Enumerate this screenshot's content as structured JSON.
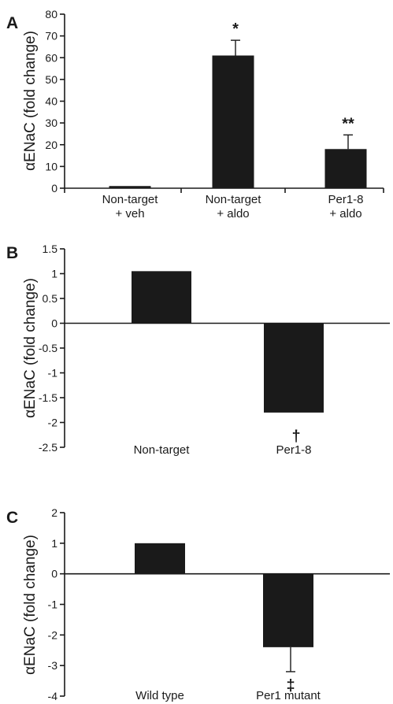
{
  "chart_data": [
    {
      "panel": "A",
      "type": "bar",
      "ylabel": "αENaC (fold change)",
      "ylim": [
        0,
        80
      ],
      "yticks": [
        0,
        10,
        20,
        30,
        40,
        50,
        60,
        70,
        80
      ],
      "categories": [
        [
          "Non-target",
          "+ veh"
        ],
        [
          "Non-target",
          "+ aldo"
        ],
        [
          "Per1-8",
          "+ aldo"
        ]
      ],
      "values": [
        1,
        61,
        18
      ],
      "errors": [
        0.3,
        7,
        6.5
      ],
      "annotations": [
        "",
        "*",
        "**"
      ]
    },
    {
      "panel": "B",
      "type": "bar",
      "ylabel": "αENaC (fold change)",
      "ylim": [
        -2.5,
        1.5
      ],
      "yticks": [
        -2.5,
        -2,
        -1.5,
        -1,
        -0.5,
        0,
        0.5,
        1,
        1.5
      ],
      "ytick_labels": [
        "-2.5",
        "-2",
        "-1.5",
        "-1",
        "-0.5",
        "0",
        "0.5",
        "1",
        "1.5"
      ],
      "categories": [
        [
          "Non-target"
        ],
        [
          "Per1-8"
        ]
      ],
      "values": [
        1.05,
        -1.8
      ],
      "errors": [
        0.15,
        0.2
      ],
      "annotations": [
        "",
        "†"
      ]
    },
    {
      "panel": "C",
      "type": "bar",
      "ylabel": "αENaC (fold change)",
      "ylim": [
        -4,
        2
      ],
      "yticks": [
        -4,
        -3,
        -2,
        -1,
        0,
        1,
        2
      ],
      "categories": [
        [
          "Wild type"
        ],
        [
          "Per1 mutant"
        ]
      ],
      "values": [
        1,
        -2.4
      ],
      "errors": [
        0.15,
        0.8
      ],
      "annotations": [
        "",
        "‡"
      ]
    }
  ]
}
